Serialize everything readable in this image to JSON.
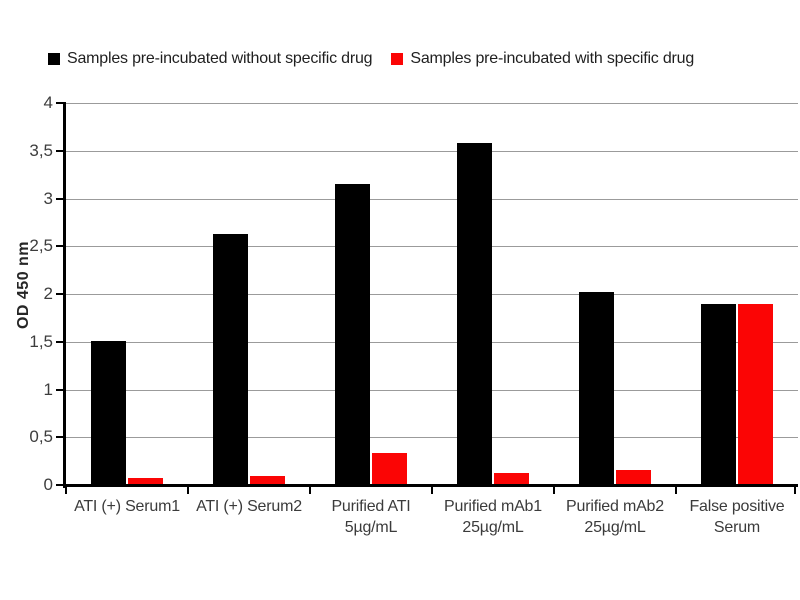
{
  "legend": {
    "items": [
      {
        "label": "Samples pre-incubated without specific drug",
        "color": "#000000"
      },
      {
        "label": "Samples pre-incubated with specific drug",
        "color": "#fb0505"
      }
    ]
  },
  "chart_data": {
    "type": "bar",
    "title": "",
    "xlabel": "",
    "ylabel": "OD 450 nm",
    "ylim": [
      0,
      4
    ],
    "ytick_step": 0.5,
    "ytick_labels": [
      "0",
      "0,5",
      "1",
      "1,5",
      "2",
      "2,5",
      "3",
      "3,5",
      "4"
    ],
    "grid": true,
    "legend_position": "top",
    "categories": [
      "ATI (+) Serum1",
      "ATI (+) Serum2",
      "Purified ATI\n5µg/mL",
      "Purified mAb1\n25µg/mL",
      "Purified mAb2\n25µg/mL",
      "False positive\nSerum"
    ],
    "series": [
      {
        "name": "Samples pre-incubated without specific drug",
        "key": "without-drug",
        "color": "#000000",
        "values": [
          1.51,
          2.63,
          3.15,
          3.58,
          2.02,
          1.9
        ]
      },
      {
        "name": "Samples pre-incubated with specific drug",
        "key": "with-drug",
        "color": "#fb0505",
        "values": [
          0.07,
          0.09,
          0.33,
          0.13,
          0.16,
          1.9
        ]
      }
    ]
  },
  "colors": {
    "axis": "#000000",
    "grid": "#9b9b9b",
    "text": "#3b3b3b"
  }
}
